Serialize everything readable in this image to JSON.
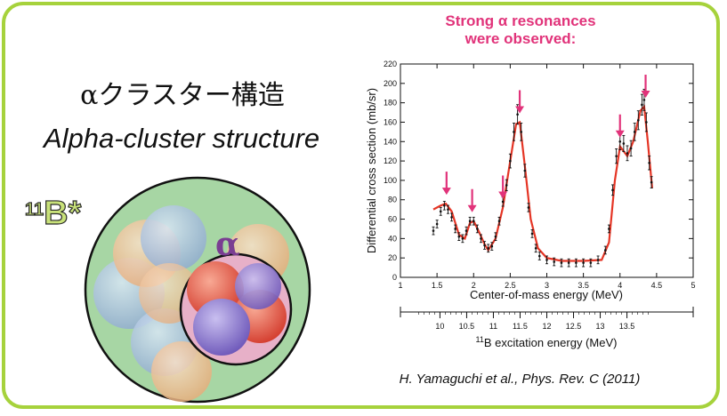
{
  "slide": {
    "title_jp": "αクラスター構造",
    "title_en": "Alpha-cluster structure",
    "headline_line1": "Strong α resonances",
    "headline_line2": "were observed:",
    "citation": "H. Yamaguchi et al., Phys. Rev. C (2011)",
    "frame_color": "#a6d23c",
    "accent_color": "#e1337a"
  },
  "diagram": {
    "nucleus_label": "11B*",
    "nucleus_mass": "11",
    "nucleus_symbol": "B*",
    "alpha_label": "α"
  },
  "chart_data": {
    "type": "line",
    "xlabel": "Center-of-mass energy (MeV)",
    "ylabel": "Differential cross section (mb/sr)",
    "xlim": [
      1,
      5
    ],
    "ylim": [
      0,
      220
    ],
    "x_ticks": [
      "1",
      "1.5",
      "2",
      "2.5",
      "3",
      "3.5",
      "4",
      "4.5",
      "5"
    ],
    "y_ticks": [
      "0",
      "20",
      "40",
      "60",
      "80",
      "100",
      "120",
      "140",
      "160",
      "180",
      "200",
      "220"
    ],
    "secondary_axis": {
      "label_mass": "11",
      "label_rest": "B excitation energy (MeV)",
      "ticks": [
        "10",
        "10.5",
        "11",
        "11.5",
        "12",
        "12.5",
        "13",
        "13.5"
      ],
      "ecm_at_10_mev": 1.54,
      "step_per_mev": 0.73
    },
    "data_points": [
      [
        1.45,
        48
      ],
      [
        1.5,
        55
      ],
      [
        1.55,
        68
      ],
      [
        1.6,
        74
      ],
      [
        1.65,
        70
      ],
      [
        1.7,
        62
      ],
      [
        1.75,
        50
      ],
      [
        1.8,
        42
      ],
      [
        1.85,
        40
      ],
      [
        1.9,
        48
      ],
      [
        1.95,
        58
      ],
      [
        2.0,
        58
      ],
      [
        2.05,
        50
      ],
      [
        2.1,
        40
      ],
      [
        2.15,
        33
      ],
      [
        2.2,
        30
      ],
      [
        2.25,
        32
      ],
      [
        2.3,
        42
      ],
      [
        2.35,
        58
      ],
      [
        2.4,
        78
      ],
      [
        2.45,
        95
      ],
      [
        2.5,
        120
      ],
      [
        2.55,
        150
      ],
      [
        2.6,
        168
      ],
      [
        2.65,
        150
      ],
      [
        2.7,
        110
      ],
      [
        2.75,
        72
      ],
      [
        2.8,
        45
      ],
      [
        2.85,
        30
      ],
      [
        2.9,
        22
      ],
      [
        3.0,
        18
      ],
      [
        3.1,
        16
      ],
      [
        3.2,
        15
      ],
      [
        3.3,
        15
      ],
      [
        3.4,
        15
      ],
      [
        3.5,
        15
      ],
      [
        3.6,
        15
      ],
      [
        3.7,
        18
      ],
      [
        3.8,
        28
      ],
      [
        3.85,
        50
      ],
      [
        3.9,
        90
      ],
      [
        3.95,
        125
      ],
      [
        4.0,
        140
      ],
      [
        4.05,
        138
      ],
      [
        4.1,
        128
      ],
      [
        4.15,
        133
      ],
      [
        4.2,
        150
      ],
      [
        4.25,
        162
      ],
      [
        4.3,
        178
      ],
      [
        4.33,
        183
      ],
      [
        4.36,
        160
      ],
      [
        4.4,
        118
      ],
      [
        4.43,
        98
      ]
    ],
    "fit_curve": [
      [
        1.45,
        70
      ],
      [
        1.55,
        74
      ],
      [
        1.62,
        76
      ],
      [
        1.7,
        68
      ],
      [
        1.8,
        44
      ],
      [
        1.88,
        40
      ],
      [
        1.95,
        56
      ],
      [
        2.0,
        58
      ],
      [
        2.08,
        46
      ],
      [
        2.15,
        34
      ],
      [
        2.2,
        28
      ],
      [
        2.3,
        40
      ],
      [
        2.4,
        72
      ],
      [
        2.5,
        120
      ],
      [
        2.58,
        158
      ],
      [
        2.63,
        160
      ],
      [
        2.7,
        115
      ],
      [
        2.78,
        60
      ],
      [
        2.88,
        30
      ],
      [
        3.0,
        20
      ],
      [
        3.2,
        17
      ],
      [
        3.5,
        17
      ],
      [
        3.75,
        18
      ],
      [
        3.85,
        36
      ],
      [
        3.93,
        100
      ],
      [
        4.0,
        135
      ],
      [
        4.1,
        125
      ],
      [
        4.18,
        140
      ],
      [
        4.28,
        172
      ],
      [
        4.33,
        176
      ],
      [
        4.38,
        140
      ],
      [
        4.44,
        92
      ]
    ],
    "resonance_arrows": [
      1.63,
      1.98,
      2.4,
      2.63,
      4.0,
      4.35
    ],
    "series_colors": {
      "data": "#111111",
      "fit": "#e53525",
      "arrows": "#e1337a"
    }
  }
}
